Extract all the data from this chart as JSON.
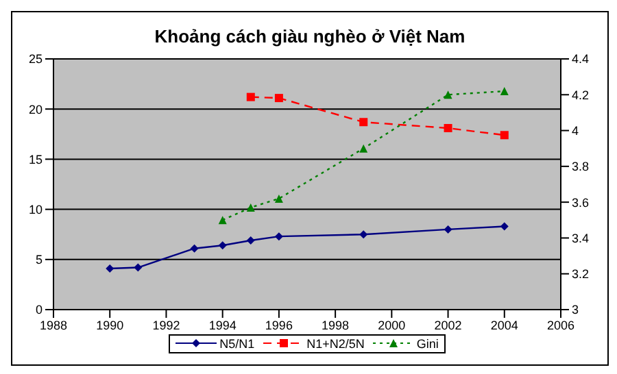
{
  "chart_data": {
    "type": "line",
    "title": "Khoảng cách giàu nghèo ở Việt Nam",
    "series": [
      {
        "name": "N5/N1",
        "color": "#000080",
        "marker": "diamond",
        "line_style": "solid",
        "x": [
          1990,
          1991,
          1993,
          1994,
          1995,
          1996,
          1999,
          2002,
          2004
        ],
        "values": [
          4.1,
          4.2,
          6.1,
          6.4,
          6.9,
          7.3,
          7.5,
          8.0,
          8.3
        ]
      },
      {
        "name": "N1+N2/5N",
        "color": "#ff0000",
        "marker": "square",
        "line_style": "dashed",
        "x": [
          1995,
          1996,
          1999,
          2002,
          2004
        ],
        "values": [
          21.2,
          21.1,
          18.7,
          18.1,
          17.4
        ]
      },
      {
        "name": "Gini",
        "color": "#008000",
        "marker": "triangle",
        "line_style": "dotted",
        "axis": "y2",
        "x": [
          1994,
          1995,
          1996,
          1999,
          2002,
          2004
        ],
        "values": [
          3.5,
          3.57,
          3.62,
          3.9,
          4.2,
          4.22
        ]
      }
    ],
    "xlim": [
      1988,
      2006
    ],
    "xticks": [
      1988,
      1990,
      1992,
      1994,
      1996,
      1998,
      2000,
      2002,
      2004,
      2006
    ],
    "ylim": [
      0,
      25
    ],
    "yticks": [
      0,
      5,
      10,
      15,
      20,
      25
    ],
    "y2lim": [
      3,
      4.4
    ],
    "y2ticks": [
      3,
      3.2,
      3.4,
      3.6,
      3.8,
      4,
      4.2,
      4.4
    ],
    "grid": "y",
    "legend": "bottom"
  }
}
